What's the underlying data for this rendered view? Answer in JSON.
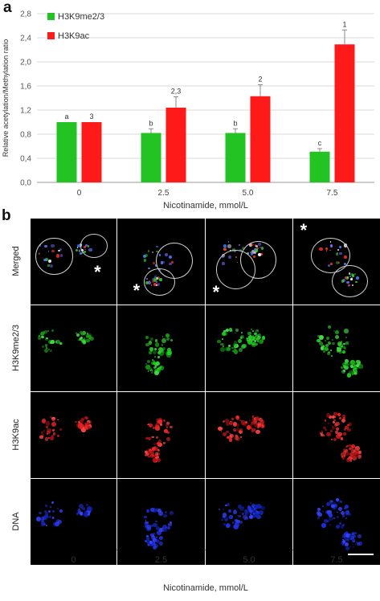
{
  "panel_a_label": "a",
  "panel_b_label": "b",
  "chart_data": {
    "type": "bar",
    "categories": [
      "0",
      "2.5",
      "5.0",
      "7.5"
    ],
    "series": [
      {
        "name": "H3K9me2/3",
        "color": "#22c322",
        "values": [
          1.0,
          0.82,
          0.82,
          0.51
        ],
        "errors": [
          0.0,
          0.07,
          0.07,
          0.05
        ],
        "labels": [
          "a",
          "b",
          "b",
          "c"
        ]
      },
      {
        "name": "H3K9ac",
        "color": "#ff1a1a",
        "values": [
          1.0,
          1.24,
          1.43,
          2.29
        ],
        "errors": [
          0.0,
          0.18,
          0.19,
          0.24
        ],
        "labels": [
          "3",
          "2,3",
          "2",
          "1"
        ]
      }
    ],
    "yticks": [
      "0,0",
      "0,4",
      "0,8",
      "1,2",
      "1,6",
      "2,0",
      "2,4",
      "2,8"
    ],
    "ylim": [
      0,
      2.8
    ],
    "xlabel": "Nicotinamide, mmol/L",
    "ylabel": "Relative acetylation/Methylation ratio",
    "legend_position": "top-left"
  },
  "micrographs": {
    "row_labels": [
      "Merged",
      "H3K9me2/3",
      "H3K9ac",
      "DNA"
    ],
    "column_labels": [
      "0",
      "2.5",
      "5.0",
      "7.5"
    ],
    "asterisk": "*",
    "xlabel": "Nicotinamide, mmol/L"
  }
}
